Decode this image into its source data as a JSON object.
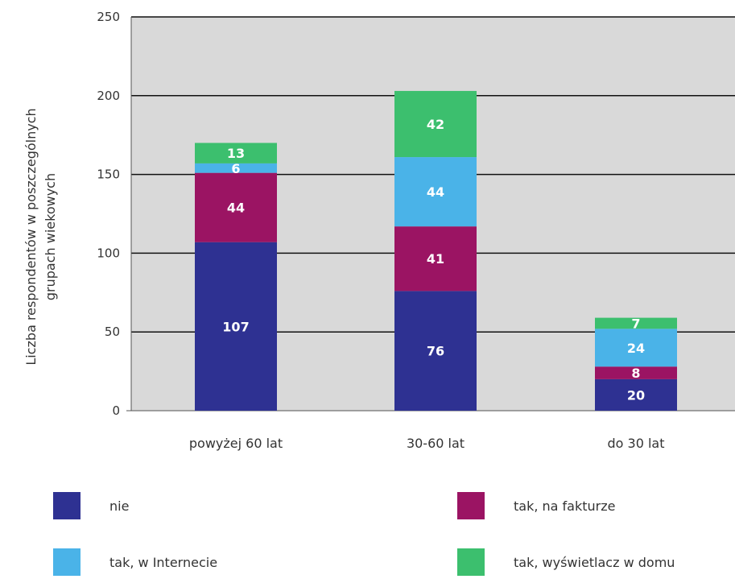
{
  "chart_data": {
    "type": "bar",
    "stacked": true,
    "categories": [
      "powyżej 60 lat",
      "30-60 lat",
      "do 30 lat"
    ],
    "series": [
      {
        "name": "nie",
        "values": [
          107,
          76,
          20
        ],
        "color": "#2e3192"
      },
      {
        "name": "tak, na fakturze",
        "values": [
          44,
          41,
          8
        ],
        "color": "#9b1463"
      },
      {
        "name": "tak, w Internecie",
        "values": [
          6,
          44,
          24
        ],
        "color": "#4ab3e8"
      },
      {
        "name": "tak, wyświetlacz w domu",
        "values": [
          13,
          42,
          7
        ],
        "color": "#3cbf6e"
      }
    ],
    "title": "",
    "xlabel": "",
    "ylabel_lines": [
      "Liczba respondentów w poszczególnych",
      "grupach wiekowych"
    ],
    "ylim": [
      0,
      250
    ],
    "yticks": [
      0,
      50,
      100,
      150,
      200,
      250
    ],
    "grid": true,
    "plot_background": "#d9d9d9",
    "legend_position": "bottom"
  }
}
